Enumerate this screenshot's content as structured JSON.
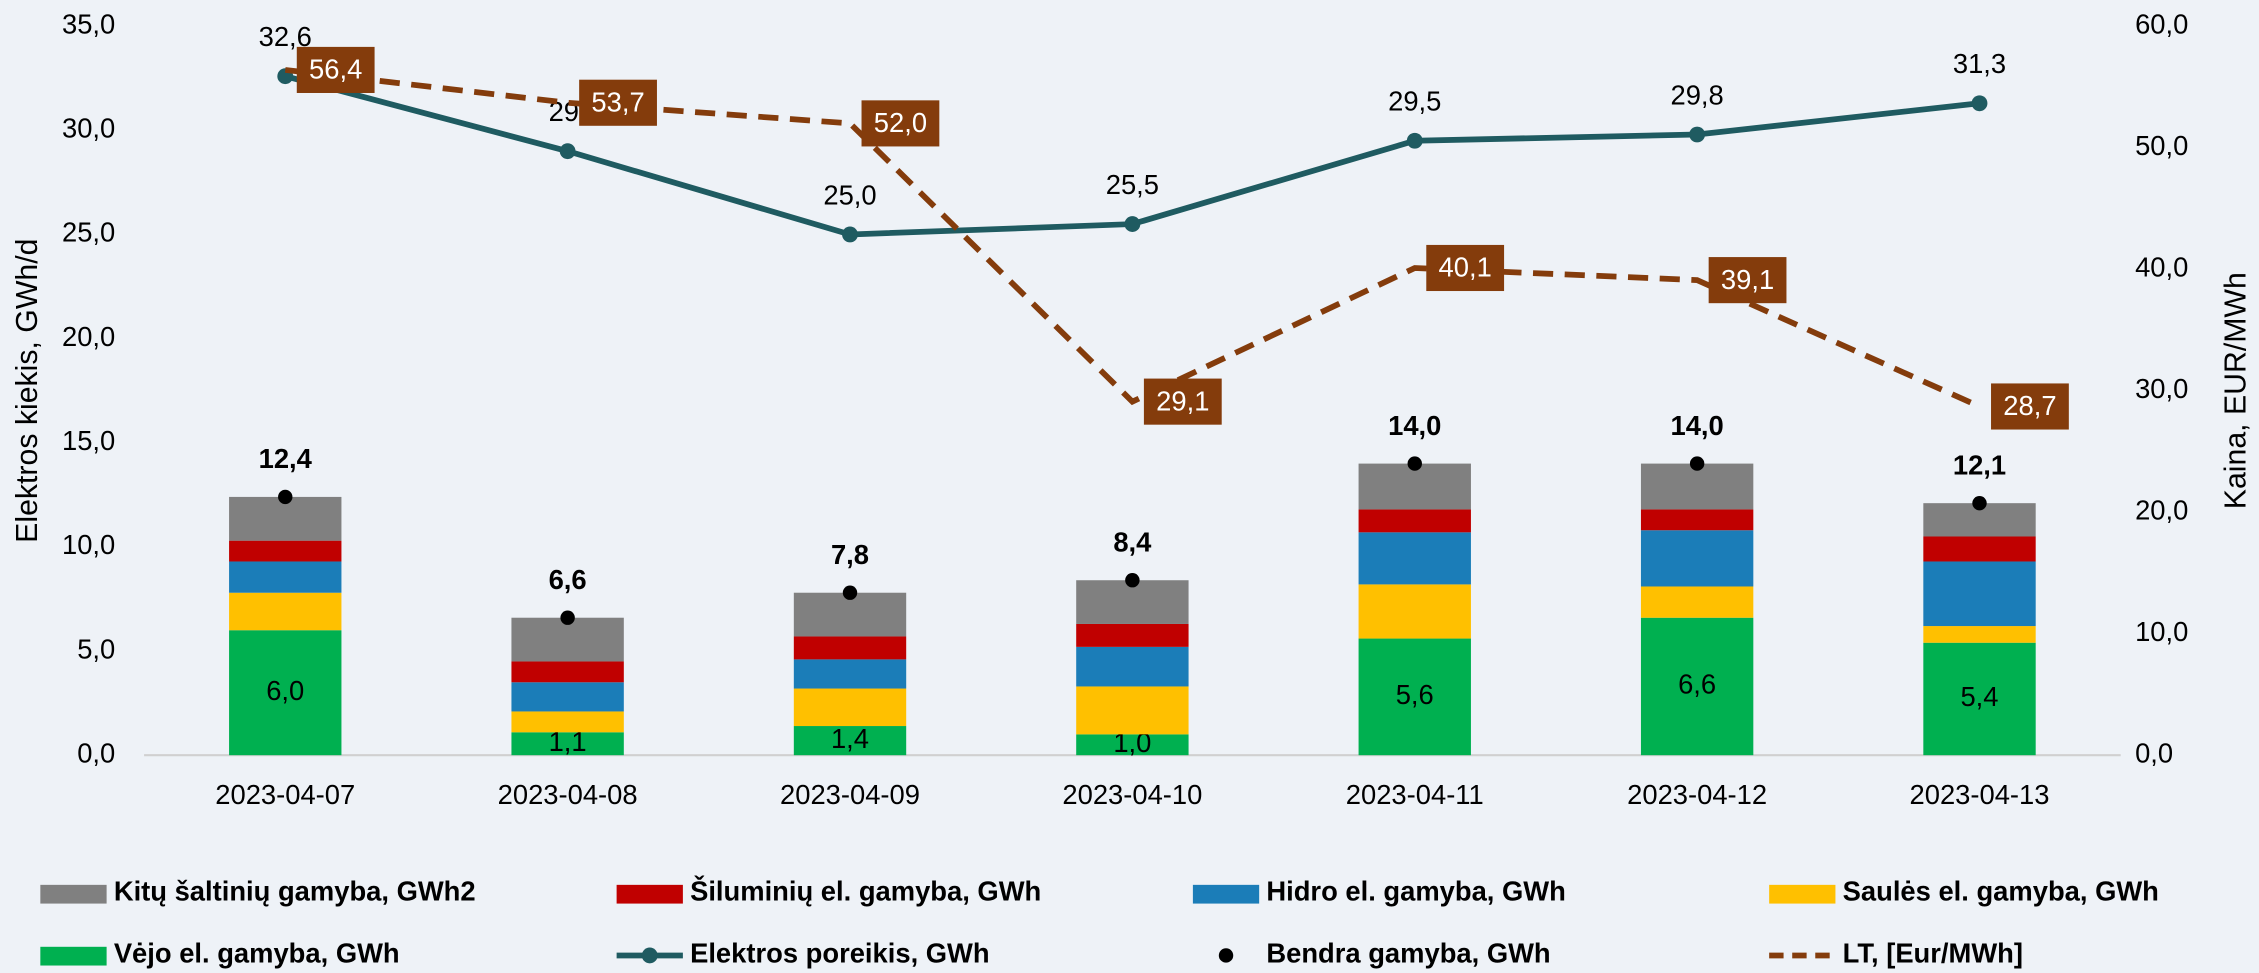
{
  "chart_data": {
    "type": "bar",
    "categories": [
      "2023-04-07",
      "2023-04-08",
      "2023-04-09",
      "2023-04-10",
      "2023-04-11",
      "2023-04-12",
      "2023-04-13"
    ],
    "ylabel": "Elektros kiekis, GWh/d",
    "y2label": "Kaina, EUR/MWh",
    "ylim": [
      0,
      35
    ],
    "yticks": [
      {
        "value": 0,
        "label": "0,0"
      },
      {
        "value": 5,
        "label": "5,0"
      },
      {
        "value": 10,
        "label": "10,0"
      },
      {
        "value": 15,
        "label": "15,0"
      },
      {
        "value": 20,
        "label": "20,0"
      },
      {
        "value": 25,
        "label": "25,0"
      },
      {
        "value": 30,
        "label": "30,0"
      },
      {
        "value": 35,
        "label": "35,0"
      }
    ],
    "y2lim": [
      0,
      60
    ],
    "y2ticks": [
      {
        "value": 0,
        "label": "0,0"
      },
      {
        "value": 10,
        "label": "10,0"
      },
      {
        "value": 20,
        "label": "20,0"
      },
      {
        "value": 30,
        "label": "30,0"
      },
      {
        "value": 40,
        "label": "40,0"
      },
      {
        "value": 50,
        "label": "50,0"
      },
      {
        "value": 60,
        "label": "60,0"
      }
    ],
    "series": [
      {
        "name": "Kitų šaltinių gamyba, GWh2",
        "type": "bar",
        "color": "#808080",
        "values": [
          2.1,
          2.1,
          2.1,
          2.1,
          2.2,
          2.2,
          1.6
        ]
      },
      {
        "name": "Šiluminių el. gamyba, GWh",
        "type": "bar",
        "color": "#c00000",
        "values": [
          1.0,
          1.0,
          1.1,
          1.1,
          1.1,
          1.0,
          1.2
        ]
      },
      {
        "name": "Hidro el. gamyba, GWh",
        "type": "bar",
        "color": "#1b7db8",
        "values": [
          1.5,
          1.4,
          1.4,
          1.9,
          2.5,
          2.7,
          3.1
        ]
      },
      {
        "name": "Saulės el. gamyba, GWh",
        "type": "bar",
        "color": "#ffc000",
        "values": [
          1.8,
          1.0,
          1.8,
          2.3,
          2.6,
          1.5,
          0.8
        ]
      },
      {
        "name": "Vėjo el. gamyba, GWh",
        "type": "bar",
        "color": "#00b050",
        "values": [
          6.0,
          1.1,
          1.4,
          1.0,
          5.6,
          6.6,
          5.4
        ],
        "value_labels": [
          "6,0",
          "1,1",
          "1,4",
          "1,0",
          "5,6",
          "6,6",
          "5,4"
        ]
      },
      {
        "name": "Elektros poreikis, GWh",
        "type": "line",
        "color": "#1f5b61",
        "values": [
          32.6,
          29.0,
          25.0,
          25.5,
          29.5,
          29.8,
          31.3
        ],
        "value_labels": [
          "32,6",
          "29,",
          "25,0",
          "25,5",
          "29,5",
          "29,8",
          "31,3"
        ]
      },
      {
        "name": "Bendra gamyba, GWh",
        "type": "dot",
        "color": "#000000",
        "values": [
          12.4,
          6.6,
          7.8,
          8.4,
          14.0,
          14.0,
          12.1
        ],
        "value_labels": [
          "12,4",
          "6,6",
          "7,8",
          "8,4",
          "14,0",
          "14,0",
          "12,1"
        ]
      },
      {
        "name": "LT, [Eur/MWh]",
        "type": "dashed",
        "axis": "y2",
        "color": "#843c0c",
        "values": [
          56.4,
          53.7,
          52.0,
          29.1,
          40.1,
          39.1,
          28.7
        ],
        "value_labels": [
          "56,4",
          "53,7",
          "52,0",
          "29,1",
          "40,1",
          "39,1",
          "28,7"
        ]
      }
    ],
    "bar_order": [
      4,
      3,
      2,
      1,
      0
    ]
  }
}
